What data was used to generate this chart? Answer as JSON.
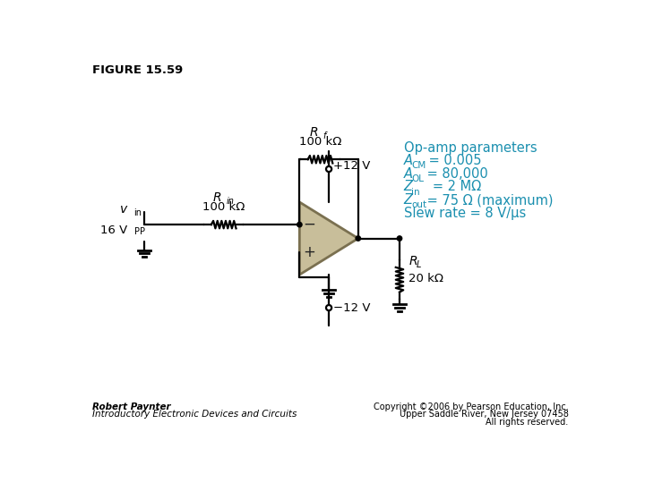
{
  "title": "FIGURE 15.59",
  "bg_color": "#ffffff",
  "line_color": "#000000",
  "cyan_color": "#1a8faf",
  "opamp_fill": "#c8be9a",
  "opamp_edge": "#7a7050",
  "footer_left_1": "Robert Paynter",
  "footer_left_2": "Introductory Electronic Devices and Circuits",
  "footer_right_1": "Copyright ©2006 by Pearson Education, Inc.",
  "footer_right_2": "Upper Saddle River, New Jersey 07458",
  "footer_right_3": "All rights reserved.",
  "params_title": "Op-amp parameters",
  "param5": "Slew rate = 8 V/μs",
  "Rf_label": "R",
  "Rf_sub": "f",
  "Rf_val": "100 kΩ",
  "Rin_label": "R",
  "Rin_sub": "in",
  "Rin_val": "100 kΩ",
  "RL_label": "R",
  "RL_sub": "L",
  "RL_val": "20 kΩ",
  "vcc_pos": "+12 V",
  "vcc_neg": "−12 V"
}
